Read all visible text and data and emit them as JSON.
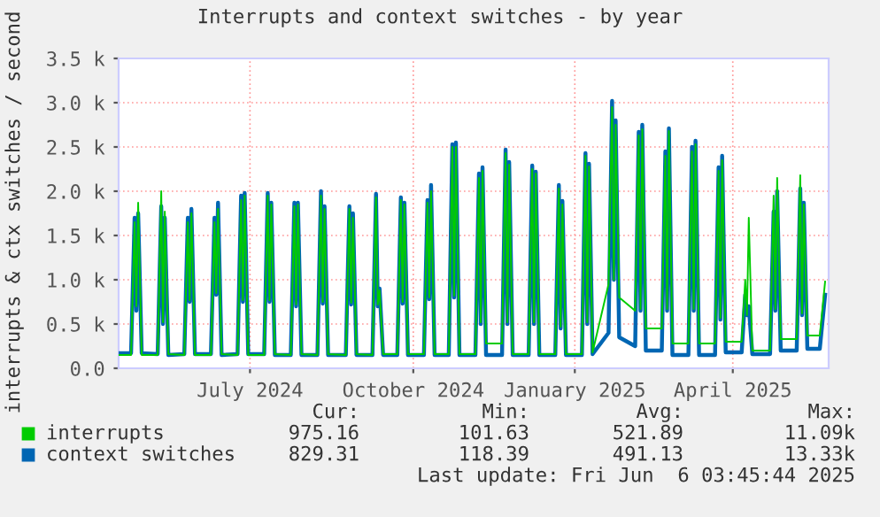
{
  "chart_data": {
    "type": "line",
    "title": "Interrupts and context switches - by year",
    "ylabel": "interrupts & ctx switches / second",
    "x": [
      "2024-05-02",
      "2024-05-09",
      "2024-05-11",
      "2024-05-12",
      "2024-05-13",
      "2024-05-15",
      "2024-05-24",
      "2024-05-26",
      "2024-05-27",
      "2024-05-28",
      "2024-05-30",
      "2024-06-08",
      "2024-06-10",
      "2024-06-11",
      "2024-06-12",
      "2024-06-14",
      "2024-06-23",
      "2024-06-25",
      "2024-06-26",
      "2024-06-27",
      "2024-06-29",
      "2024-07-08",
      "2024-07-10",
      "2024-07-11",
      "2024-07-12",
      "2024-07-14",
      "2024-07-23",
      "2024-07-25",
      "2024-07-26",
      "2024-07-27",
      "2024-07-29",
      "2024-08-07",
      "2024-08-09",
      "2024-08-10",
      "2024-08-11",
      "2024-08-13",
      "2024-08-22",
      "2024-08-24",
      "2024-08-25",
      "2024-08-26",
      "2024-08-28",
      "2024-09-07",
      "2024-09-09",
      "2024-09-10",
      "2024-09-11",
      "2024-09-13",
      "2024-09-22",
      "2024-09-24",
      "2024-09-25",
      "2024-09-26",
      "2024-09-28",
      "2024-10-06",
      "2024-10-08",
      "2024-10-09",
      "2024-10-10",
      "2024-10-12",
      "2024-10-21",
      "2024-10-23",
      "2024-10-24",
      "2024-10-25",
      "2024-10-27",
      "2024-11-04",
      "2024-11-06",
      "2024-11-07",
      "2024-11-08",
      "2024-11-10",
      "2024-11-19",
      "2024-11-21",
      "2024-11-22",
      "2024-11-23",
      "2024-11-25",
      "2024-12-04",
      "2024-12-06",
      "2024-12-07",
      "2024-12-08",
      "2024-12-10",
      "2024-12-19",
      "2024-12-21",
      "2024-12-22",
      "2024-12-23",
      "2024-12-25",
      "2025-01-03",
      "2025-01-05",
      "2025-01-06",
      "2025-01-07",
      "2025-01-09",
      "2025-01-18",
      "2025-01-20",
      "2025-01-21",
      "2025-01-22",
      "2025-01-24",
      "2025-02-02",
      "2025-02-04",
      "2025-02-05",
      "2025-02-06",
      "2025-02-08",
      "2025-02-17",
      "2025-02-19",
      "2025-02-20",
      "2025-02-21",
      "2025-02-23",
      "2025-03-04",
      "2025-03-06",
      "2025-03-07",
      "2025-03-08",
      "2025-03-10",
      "2025-03-19",
      "2025-03-21",
      "2025-03-22",
      "2025-03-23",
      "2025-03-25",
      "2025-04-03",
      "2025-04-05",
      "2025-04-06",
      "2025-04-07",
      "2025-04-09",
      "2025-04-18",
      "2025-04-20",
      "2025-04-21",
      "2025-04-22",
      "2025-04-24",
      "2025-05-04",
      "2025-05-06",
      "2025-05-07",
      "2025-05-08",
      "2025-05-10",
      "2025-05-19",
      "2025-05-21",
      "2025-05-22",
      "2025-05-23",
      "2025-05-25",
      "2025-06-01",
      "2025-06-04"
    ],
    "series": [
      {
        "name": "interrupts",
        "color": "#00cc00",
        "values": [
          150,
          150,
          1650,
          700,
          1870,
          150,
          150,
          2000,
          520,
          1770,
          160,
          150,
          1650,
          770,
          1750,
          150,
          150,
          1650,
          850,
          1800,
          160,
          150,
          1900,
          770,
          1950,
          150,
          150,
          1950,
          770,
          1850,
          160,
          150,
          1830,
          720,
          1850,
          160,
          150,
          1950,
          750,
          1800,
          160,
          150,
          1800,
          740,
          1700,
          160,
          150,
          1930,
          720,
          880,
          160,
          160,
          1900,
          750,
          1850,
          160,
          160,
          1870,
          800,
          2000,
          160,
          160,
          2500,
          820,
          2500,
          160,
          160,
          2150,
          520,
          2230,
          280,
          280,
          2430,
          520,
          2300,
          160,
          160,
          2250,
          520,
          2200,
          160,
          160,
          2030,
          470,
          1850,
          160,
          160,
          2400,
          520,
          2280,
          180,
          950,
          2950,
          1000,
          2750,
          800,
          650,
          2630,
          670,
          2700,
          450,
          450,
          2400,
          670,
          2680,
          280,
          280,
          2450,
          670,
          2530,
          280,
          280,
          2230,
          570,
          2350,
          300,
          300,
          1000,
          600,
          1700,
          200,
          200,
          1950,
          670,
          2150,
          330,
          330,
          2180,
          620,
          1850,
          370,
          370,
          980
        ]
      },
      {
        "name": "context switches",
        "color": "#0066b3",
        "values": [
          170,
          170,
          1700,
          650,
          1750,
          170,
          160,
          1830,
          500,
          1700,
          150,
          160,
          1700,
          750,
          1800,
          160,
          160,
          1700,
          830,
          1870,
          150,
          160,
          1950,
          750,
          1980,
          160,
          160,
          1980,
          750,
          1870,
          150,
          150,
          1870,
          700,
          1870,
          150,
          150,
          2000,
          730,
          1830,
          150,
          150,
          1830,
          720,
          1750,
          150,
          150,
          1970,
          700,
          900,
          150,
          150,
          1930,
          730,
          1870,
          150,
          150,
          1900,
          780,
          2070,
          150,
          150,
          2530,
          800,
          2550,
          150,
          150,
          2200,
          500,
          2270,
          150,
          150,
          2470,
          500,
          2330,
          150,
          150,
          2290,
          500,
          2220,
          150,
          150,
          2070,
          450,
          1890,
          150,
          150,
          2430,
          500,
          2310,
          160,
          400,
          3020,
          1000,
          2800,
          350,
          250,
          2670,
          650,
          2750,
          200,
          200,
          2450,
          650,
          2710,
          150,
          150,
          2500,
          650,
          2570,
          150,
          150,
          2270,
          550,
          2400,
          180,
          180,
          830,
          600,
          700,
          160,
          160,
          1770,
          650,
          2000,
          200,
          200,
          2030,
          600,
          1870,
          220,
          220,
          830
        ]
      }
    ],
    "xlim": [
      "2024-05-02",
      "2025-06-06"
    ],
    "xticks": [
      {
        "value": "2024-07-15",
        "label": "July 2024"
      },
      {
        "value": "2024-10-15",
        "label": "October 2024"
      },
      {
        "value": "2025-01-14",
        "label": "January 2025"
      },
      {
        "value": "2025-04-13",
        "label": "April 2025"
      }
    ],
    "ylim": [
      0,
      3500
    ],
    "yticks": [
      {
        "value": 0,
        "label": "0.0"
      },
      {
        "value": 500,
        "label": "0.5 k"
      },
      {
        "value": 1000,
        "label": "1.0 k"
      },
      {
        "value": 1500,
        "label": "1.5 k"
      },
      {
        "value": 2000,
        "label": "2.0 k"
      },
      {
        "value": 2500,
        "label": "2.5 k"
      },
      {
        "value": 3000,
        "label": "3.0 k"
      },
      {
        "value": 3500,
        "label": "3.5 k"
      }
    ],
    "grid": true,
    "legend": "bottom",
    "annotations": [
      "Cur:",
      "Min:",
      "Avg:",
      "Max:",
      "975.16",
      "101.63",
      "521.89",
      "11.09k",
      "829.31",
      "118.39",
      "491.13",
      "13.33k",
      "Last update: Fri Jun  6 03:45:44 2025"
    ]
  }
}
